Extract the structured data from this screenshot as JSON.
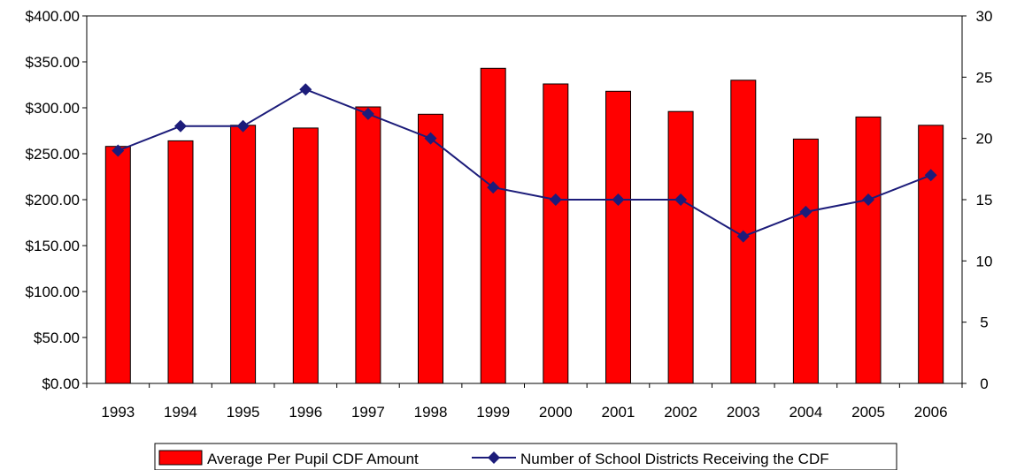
{
  "chart_data": {
    "type": "bar",
    "title": "",
    "xlabel": "",
    "ylabel": "",
    "categories": [
      "1993",
      "1994",
      "1995",
      "1996",
      "1997",
      "1998",
      "1999",
      "2000",
      "2001",
      "2002",
      "2003",
      "2004",
      "2005",
      "2006"
    ],
    "series": [
      {
        "name": "Average Per Pupil CDF Amount",
        "kind": "bar",
        "axis": "left",
        "color": "#ff0000",
        "values": [
          258,
          264,
          281,
          278,
          301,
          293,
          343,
          326,
          318,
          296,
          330,
          266,
          290,
          281
        ]
      },
      {
        "name": "Number of School Districts Receiving the CDF",
        "kind": "line",
        "marker": "diamond",
        "axis": "right",
        "color": "#1c1c7a",
        "values": [
          19,
          21,
          21,
          24,
          22,
          20,
          16,
          15,
          15,
          15,
          12,
          14,
          15,
          17
        ]
      }
    ],
    "ylim": [
      0,
      400
    ],
    "y2lim": [
      0,
      30
    ],
    "yticks": [
      "$0.00",
      "$50.00",
      "$100.00",
      "$150.00",
      "$200.00",
      "$250.00",
      "$300.00",
      "$350.00",
      "$400.00"
    ],
    "y2ticks": [
      "0",
      "5",
      "10",
      "15",
      "20",
      "25",
      "30"
    ],
    "grid": false,
    "legend": "bottom"
  }
}
